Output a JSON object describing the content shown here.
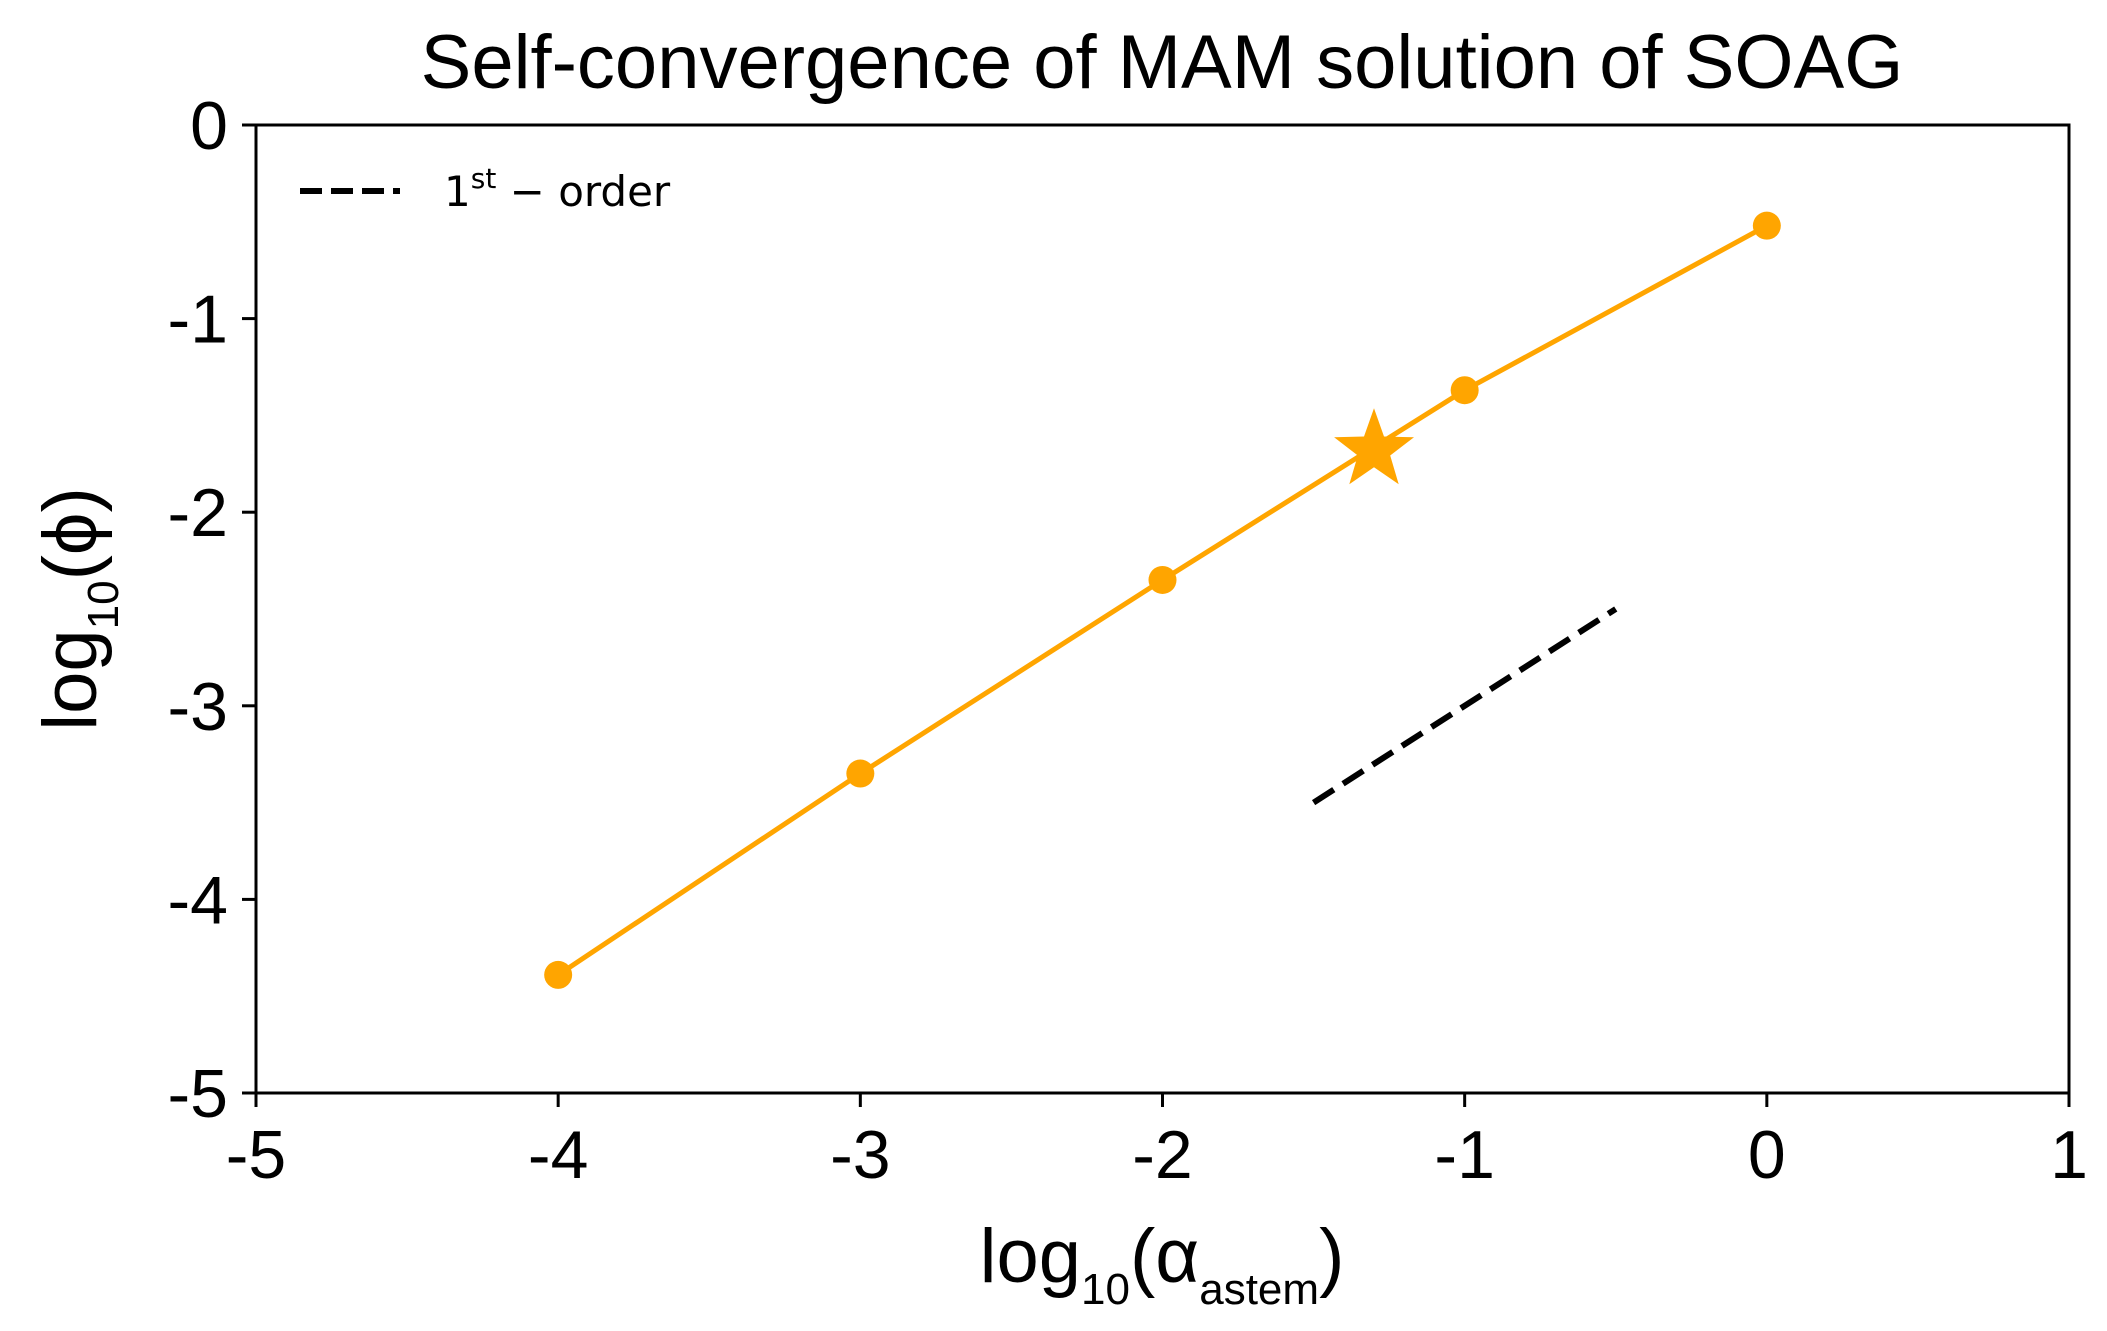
{
  "chart_data": {
    "type": "line",
    "title": "Self-convergence of MAM solution of SOAG",
    "xlabel": {
      "prefix": "log",
      "sub": "10",
      "open": "(α",
      "inner_sub": "astem",
      "close": ")"
    },
    "ylabel": {
      "prefix": "log",
      "sub": "10",
      "rest": "(ϕ)"
    },
    "xlim": [
      -5,
      1
    ],
    "ylim": [
      -5,
      0
    ],
    "x_ticks": [
      -5,
      -4,
      -3,
      -2,
      -1,
      0,
      1
    ],
    "x_tick_labels": [
      "-5",
      "-4",
      "-3",
      "-2",
      "-1",
      "0",
      "1"
    ],
    "y_ticks": [
      0,
      -1,
      -2,
      -3,
      -4,
      -5
    ],
    "y_tick_labels": [
      "0",
      "-1",
      "-2",
      "-3",
      "-4",
      "-5"
    ],
    "grid": false,
    "legend_position": "top-left",
    "series": [
      {
        "x": [
          -4,
          -3,
          -2,
          -1,
          0
        ],
        "y": [
          -4.39,
          -3.35,
          -2.35,
          -1.37,
          -0.52
        ],
        "color": "#FFA500",
        "marker": "circle",
        "line_style": "solid"
      },
      {
        "name": "1st − order",
        "x": [
          -1.5,
          -0.5
        ],
        "y": [
          -3.5,
          -2.5
        ],
        "color": "#000000",
        "marker": "none",
        "line_style": "dashed"
      }
    ],
    "highlight": {
      "x": -1.3,
      "y": -1.68,
      "marker": "star",
      "color": "#FFA500"
    },
    "legend": {
      "main": "1",
      "sup": "st",
      "rest": " − order"
    }
  }
}
